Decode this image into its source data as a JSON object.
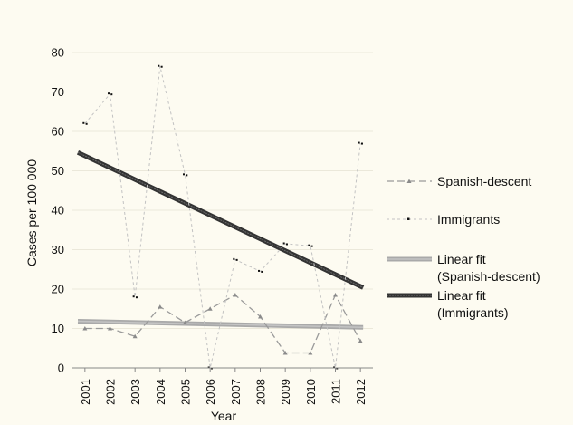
{
  "chart_data": {
    "type": "line",
    "title": "",
    "xlabel": "Year",
    "ylabel": "Cases per 100 000",
    "ylim": [
      0,
      80
    ],
    "yticks": [
      0,
      10,
      20,
      30,
      40,
      50,
      60,
      70,
      80
    ],
    "grid": true,
    "legend_position": "right",
    "categories": [
      "2001",
      "2002",
      "2003",
      "2004",
      "2005",
      "2006",
      "2007",
      "2008",
      "2009",
      "2010",
      "2011",
      "2012"
    ],
    "series": [
      {
        "name": "Spanish-descent",
        "style": "dashed-triangle",
        "color": "#999999",
        "values": [
          10,
          10,
          8,
          15.5,
          11.5,
          15,
          18.5,
          13,
          3.8,
          3.8,
          18.5,
          6.8
        ]
      },
      {
        "name": "Immigrants",
        "style": "dotted-point",
        "color": "#bbbbbb",
        "values": [
          62,
          69.5,
          18,
          76.5,
          49,
          0,
          27.5,
          24.5,
          31.5,
          31,
          0,
          57
        ]
      },
      {
        "name": "Linear fit\n(Spanish-descent)",
        "legend_lines": [
          "Linear fit",
          "(Spanish-descent)"
        ],
        "style": "thick-light",
        "color": "#a6a6a6",
        "line": {
          "start": 11.8,
          "end": 10.3
        }
      },
      {
        "name": "Linear fit\n(Immigrants)",
        "legend_lines": [
          "Linear fit",
          "(Immigrants)"
        ],
        "style": "thick-dark",
        "color": "#3a3a3a",
        "line": {
          "start": 53.8,
          "end": 20.7
        }
      }
    ]
  }
}
